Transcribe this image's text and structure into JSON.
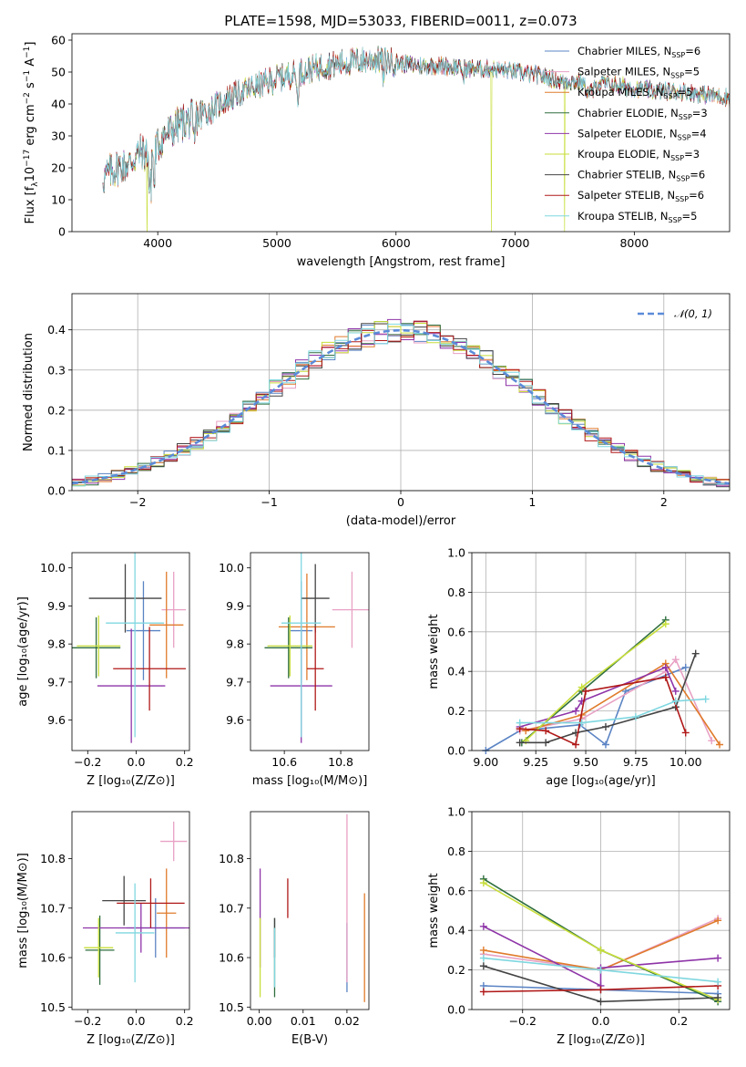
{
  "figure": {
    "title": "PLATE=1598, MJD=53033, FIBERID=0011, z=0.073"
  },
  "chart_data": [
    {
      "id": "spectrum",
      "type": "line",
      "title": "PLATE=1598, MJD=53033, FIBERID=0011, z=0.073",
      "xlabel": "wavelength [Angstrom, rest frame]",
      "ylabel_parts": [
        "Flux [f",
        "λ",
        "10",
        "−17",
        " erg cm",
        "−2",
        " s",
        "−1",
        " A",
        "−1",
        "]"
      ],
      "xlim": [
        3280,
        8800
      ],
      "ylim": [
        0,
        62
      ],
      "xticks": [
        4000,
        5000,
        6000,
        7000,
        8000
      ],
      "yticks": [
        0,
        10,
        20,
        30,
        40,
        50,
        60
      ],
      "legend_position": "top-right",
      "continuum": {
        "x": [
          3550,
          3650,
          3750,
          3850,
          3950,
          4050,
          4200,
          4400,
          4600,
          4800,
          5000,
          5200,
          5400,
          5600,
          5800,
          6000,
          6200,
          6400,
          6600,
          6800,
          7000,
          7200,
          7400,
          7600,
          7800,
          8000,
          8200,
          8400,
          8600,
          8800
        ],
        "y": [
          17,
          20,
          21,
          25,
          24,
          30,
          34,
          37,
          42,
          45,
          48,
          50,
          52,
          53,
          54,
          53,
          52,
          52,
          51,
          51,
          50,
          49,
          47,
          47,
          46,
          45,
          44,
          44,
          43,
          42
        ]
      },
      "series": [
        {
          "label": "Chabrier MILES, N",
          "sub": "SSP",
          "n": "6",
          "color": "#5b84c4"
        },
        {
          "label": "Salpeter MILES, N",
          "sub": "SSP",
          "n": "5",
          "color": "#e8a1c4"
        },
        {
          "label": "Kroupa MILES, N",
          "sub": "SSP",
          "n": "5",
          "color": "#e07b2b"
        },
        {
          "label": "Chabrier ELODIE, N",
          "sub": "SSP",
          "n": "3",
          "color": "#2e6e3e"
        },
        {
          "label": "Salpeter ELODIE, N",
          "sub": "SSP",
          "n": "4",
          "color": "#8e34a8"
        },
        {
          "label": "Kroupa ELODIE, N",
          "sub": "SSP",
          "n": "3",
          "color": "#c8de3a"
        },
        {
          "label": "Chabrier STELIB, N",
          "sub": "SSP",
          "n": "6",
          "color": "#444444"
        },
        {
          "label": "Salpeter STELIB, N",
          "sub": "SSP",
          "n": "6",
          "color": "#b01818"
        },
        {
          "label": "Kroupa STELIB, N",
          "sub": "SSP",
          "n": "5",
          "color": "#7fd7e0"
        }
      ]
    },
    {
      "id": "residuals",
      "type": "histogram",
      "xlabel": "(data-model)/error",
      "ylabel": "Normed distribution",
      "xlim": [
        -2.5,
        2.5
      ],
      "ylim": [
        0,
        0.49
      ],
      "xticks": [
        -2,
        -1,
        0,
        1,
        2
      ],
      "yticks": [
        0.0,
        0.1,
        0.2,
        0.3,
        0.4
      ],
      "grid": true,
      "legend_position": "top-right",
      "reference": {
        "label": "𝒩(0, 1)",
        "color": "#5b8bd8",
        "mean": 0,
        "sigma": 1
      },
      "bin_edges_start": -2.5,
      "bin_width": 0.1
    },
    {
      "id": "age_vs_Z",
      "type": "errorbar",
      "xlabel": "Z [log₁₀(Z/Z⊙)]",
      "ylabel": "age  [log₁₀(age/yr)]",
      "xlim": [
        -0.265,
        0.22
      ],
      "ylim": [
        9.52,
        10.04
      ],
      "xticks": [
        -0.2,
        0.0,
        0.2
      ],
      "yticks": [
        9.6,
        9.7,
        9.8,
        9.9,
        10.0
      ],
      "points": [
        {
          "x": 0.03,
          "xerr": 0.07,
          "y": 9.835,
          "yerr": 0.13,
          "color": "#5b84c4"
        },
        {
          "x": 0.155,
          "xerr": 0.05,
          "y": 9.89,
          "yerr": 0.1,
          "color": "#e8a1c4"
        },
        {
          "x": 0.125,
          "xerr": 0.07,
          "y": 9.85,
          "yerr": 0.14,
          "color": "#e07b2b"
        },
        {
          "x": -0.165,
          "xerr": 0.1,
          "y": 9.79,
          "yerr": 0.08,
          "color": "#2e6e3e"
        },
        {
          "x": -0.02,
          "xerr": 0.14,
          "y": 9.69,
          "yerr": 0.15,
          "color": "#8e34a8"
        },
        {
          "x": -0.155,
          "xerr": 0.09,
          "y": 9.795,
          "yerr": 0.08,
          "color": "#c8de3a"
        },
        {
          "x": -0.045,
          "xerr": 0.15,
          "y": 9.92,
          "yerr": 0.09,
          "color": "#444444"
        },
        {
          "x": 0.055,
          "xerr": 0.15,
          "y": 9.735,
          "yerr": 0.11,
          "color": "#b01818"
        },
        {
          "x": -0.005,
          "xerr": 0.12,
          "y": 9.855,
          "yerr": 0.3,
          "color": "#7fd7e0"
        }
      ]
    },
    {
      "id": "age_vs_mass",
      "type": "errorbar",
      "xlabel": "mass [log₁₀(M/M⊙)]",
      "ylabel": "",
      "xlim": [
        10.48,
        10.9
      ],
      "ylim": [
        9.52,
        10.04
      ],
      "xticks": [
        10.6,
        10.8
      ],
      "yticks": [
        9.6,
        9.7,
        9.8,
        9.9,
        10.0
      ],
      "points": [
        {
          "x": 10.66,
          "xerr": 0.04,
          "y": 9.835,
          "yerr": 0.13,
          "color": "#5b84c4"
        },
        {
          "x": 10.84,
          "xerr": 0.07,
          "y": 9.89,
          "yerr": 0.1,
          "color": "#e8a1c4"
        },
        {
          "x": 10.68,
          "xerr": 0.1,
          "y": 9.845,
          "yerr": 0.14,
          "color": "#e07b2b"
        },
        {
          "x": 10.615,
          "xerr": 0.085,
          "y": 9.79,
          "yerr": 0.08,
          "color": "#2e6e3e"
        },
        {
          "x": 10.66,
          "xerr": 0.11,
          "y": 9.69,
          "yerr": 0.15,
          "color": "#8e34a8"
        },
        {
          "x": 10.62,
          "xerr": 0.08,
          "y": 9.795,
          "yerr": 0.08,
          "color": "#c8de3a"
        },
        {
          "x": 10.71,
          "xerr": 0.05,
          "y": 9.92,
          "yerr": 0.09,
          "color": "#444444"
        },
        {
          "x": 10.71,
          "xerr": 0.03,
          "y": 9.735,
          "yerr": 0.11,
          "color": "#b01818"
        },
        {
          "x": 10.66,
          "xerr": 0.07,
          "y": 9.855,
          "yerr": 0.3,
          "color": "#7fd7e0"
        }
      ]
    },
    {
      "id": "weight_vs_age",
      "type": "line",
      "xlabel": "age  [log₁₀(age/yr)]",
      "ylabel": "mass weight",
      "xlim": [
        8.93,
        10.22
      ],
      "ylim": [
        0,
        1
      ],
      "xticks": [
        9.0,
        9.25,
        9.5,
        9.75,
        10.0
      ],
      "yticks": [
        0.0,
        0.2,
        0.4,
        0.6,
        0.8,
        1.0
      ],
      "grid": true,
      "series": [
        {
          "color": "#5b84c4",
          "x": [
            9.0,
            9.17,
            9.47,
            9.6,
            9.7,
            10.0
          ],
          "y": [
            0.0,
            0.1,
            0.13,
            0.03,
            0.3,
            0.42
          ]
        },
        {
          "color": "#e8a1c4",
          "x": [
            9.17,
            9.48,
            9.9,
            9.95,
            10.13
          ],
          "y": [
            0.1,
            0.16,
            0.4,
            0.46,
            0.05
          ]
        },
        {
          "color": "#e07b2b",
          "x": [
            9.2,
            9.48,
            9.9,
            10.17
          ],
          "y": [
            0.1,
            0.18,
            0.44,
            0.03
          ]
        },
        {
          "color": "#2e6e3e",
          "x": [
            9.18,
            9.48,
            9.9
          ],
          "y": [
            0.04,
            0.3,
            0.66
          ]
        },
        {
          "color": "#8e34a8",
          "x": [
            9.17,
            9.45,
            9.48,
            9.9,
            9.95
          ],
          "y": [
            0.12,
            0.2,
            0.25,
            0.42,
            0.3
          ]
        },
        {
          "color": "#c8de3a",
          "x": [
            9.2,
            9.48,
            9.9
          ],
          "y": [
            0.05,
            0.32,
            0.64
          ]
        },
        {
          "color": "#444444",
          "x": [
            9.17,
            9.3,
            9.45,
            9.6,
            9.95,
            10.05
          ],
          "y": [
            0.04,
            0.04,
            0.09,
            0.12,
            0.22,
            0.49
          ]
        },
        {
          "color": "#b01818",
          "x": [
            9.17,
            9.3,
            9.45,
            9.5,
            9.9,
            10.0
          ],
          "y": [
            0.11,
            0.1,
            0.03,
            0.3,
            0.37,
            0.09
          ]
        },
        {
          "color": "#7fd7e0",
          "x": [
            9.17,
            9.48,
            9.75,
            9.95,
            10.1
          ],
          "y": [
            0.14,
            0.14,
            0.17,
            0.25,
            0.26
          ]
        }
      ]
    },
    {
      "id": "mass_vs_Z",
      "type": "errorbar",
      "xlabel": "Z [log₁₀(Z/Z⊙)]",
      "ylabel": "mass [log₁₀(M/M⊙)]",
      "xlim": [
        -0.265,
        0.22
      ],
      "ylim": [
        10.495,
        10.895
      ],
      "xticks": [
        -0.2,
        0.0,
        0.2
      ],
      "yticks": [
        10.5,
        10.6,
        10.7,
        10.8
      ],
      "points": [
        {
          "x": 0.08,
          "xerr": 0.12,
          "y": 10.66,
          "yerr": 0.06,
          "color": "#5b84c4"
        },
        {
          "x": 0.155,
          "xerr": 0.055,
          "y": 10.835,
          "yerr": 0.04,
          "color": "#e8a1c4"
        },
        {
          "x": 0.125,
          "xerr": 0.04,
          "y": 10.69,
          "yerr": 0.09,
          "color": "#e07b2b"
        },
        {
          "x": -0.15,
          "xerr": 0.06,
          "y": 10.615,
          "yerr": 0.07,
          "color": "#2e6e3e"
        },
        {
          "x": 0.02,
          "xerr": 0.24,
          "y": 10.66,
          "yerr": 0.05,
          "color": "#8e34a8"
        },
        {
          "x": -0.155,
          "xerr": 0.06,
          "y": 10.62,
          "yerr": 0.06,
          "color": "#c8de3a"
        },
        {
          "x": -0.05,
          "xerr": 0.09,
          "y": 10.715,
          "yerr": 0.05,
          "color": "#444444"
        },
        {
          "x": 0.06,
          "xerr": 0.14,
          "y": 10.71,
          "yerr": 0.05,
          "color": "#b01818"
        },
        {
          "x": -0.005,
          "xerr": 0.08,
          "y": 10.65,
          "yerr": 0.1,
          "color": "#7fd7e0"
        }
      ]
    },
    {
      "id": "mass_vs_ebv",
      "type": "errorbar",
      "xlabel": "E(B-V)",
      "ylabel": "",
      "xlim": [
        -0.002,
        0.025
      ],
      "ylim": [
        10.495,
        10.895
      ],
      "xticks": [
        0.0,
        0.01,
        0.02
      ],
      "yticks": [
        10.5,
        10.6,
        10.7,
        10.8
      ],
      "points": [
        {
          "x": 0.02,
          "xerr": 0,
          "y": 10.6,
          "yerr": 0.07,
          "color": "#5b84c4"
        },
        {
          "x": 0.02,
          "xerr": 0,
          "y": 10.72,
          "yerr": 0.17,
          "color": "#e8a1c4"
        },
        {
          "x": 0.024,
          "xerr": 0,
          "y": 10.62,
          "yerr": 0.11,
          "color": "#e07b2b"
        },
        {
          "x": 0.0035,
          "xerr": 0,
          "y": 10.6,
          "yerr": 0.08,
          "color": "#2e6e3e"
        },
        {
          "x": 0.0002,
          "xerr": 0,
          "y": 10.68,
          "yerr": 0.1,
          "color": "#8e34a8"
        },
        {
          "x": 0.0002,
          "xerr": 0,
          "y": 10.6,
          "yerr": 0.08,
          "color": "#c8de3a"
        },
        {
          "x": 0.0035,
          "xerr": 0,
          "y": 10.64,
          "yerr": 0.04,
          "color": "#444444"
        },
        {
          "x": 0.0065,
          "xerr": 0,
          "y": 10.72,
          "yerr": 0.04,
          "color": "#b01818"
        },
        {
          "x": 0.0035,
          "xerr": 0,
          "y": 10.6,
          "yerr": 0.06,
          "color": "#7fd7e0"
        }
      ]
    },
    {
      "id": "weight_vs_Z",
      "type": "line",
      "xlabel": "Z [log₁₀(Z/Z⊙)]",
      "ylabel": "mass weight",
      "xlim": [
        -0.33,
        0.33
      ],
      "ylim": [
        0,
        1
      ],
      "xticks": [
        -0.2,
        0.0,
        0.2
      ],
      "yticks": [
        0.0,
        0.2,
        0.4,
        0.6,
        0.8,
        1.0
      ],
      "grid": true,
      "series": [
        {
          "color": "#5b84c4",
          "x": [
            -0.3,
            0.0,
            0.3
          ],
          "y": [
            0.12,
            0.1,
            0.08
          ]
        },
        {
          "color": "#e8a1c4",
          "x": [
            -0.3,
            0.0,
            0.3
          ],
          "y": [
            0.28,
            0.2,
            0.46
          ]
        },
        {
          "color": "#e07b2b",
          "x": [
            -0.3,
            0.0,
            0.3
          ],
          "y": [
            0.3,
            0.2,
            0.45
          ]
        },
        {
          "color": "#2e6e3e",
          "x": [
            -0.3,
            0.0,
            0.3
          ],
          "y": [
            0.66,
            0.3,
            0.04
          ]
        },
        {
          "color": "#8e34a8",
          "x": [
            -0.3,
            0.0,
            0.0,
            0.3
          ],
          "y": [
            0.42,
            0.12,
            0.21,
            0.26
          ]
        },
        {
          "color": "#c8de3a",
          "x": [
            -0.3,
            0.0,
            0.3
          ],
          "y": [
            0.64,
            0.3,
            0.05
          ]
        },
        {
          "color": "#444444",
          "x": [
            -0.3,
            0.0,
            0.3
          ],
          "y": [
            0.22,
            0.04,
            0.06
          ]
        },
        {
          "color": "#b01818",
          "x": [
            -0.3,
            0.0,
            0.3
          ],
          "y": [
            0.09,
            0.1,
            0.12
          ]
        },
        {
          "color": "#7fd7e0",
          "x": [
            -0.3,
            0.0,
            0.3
          ],
          "y": [
            0.26,
            0.2,
            0.14
          ]
        }
      ]
    }
  ]
}
